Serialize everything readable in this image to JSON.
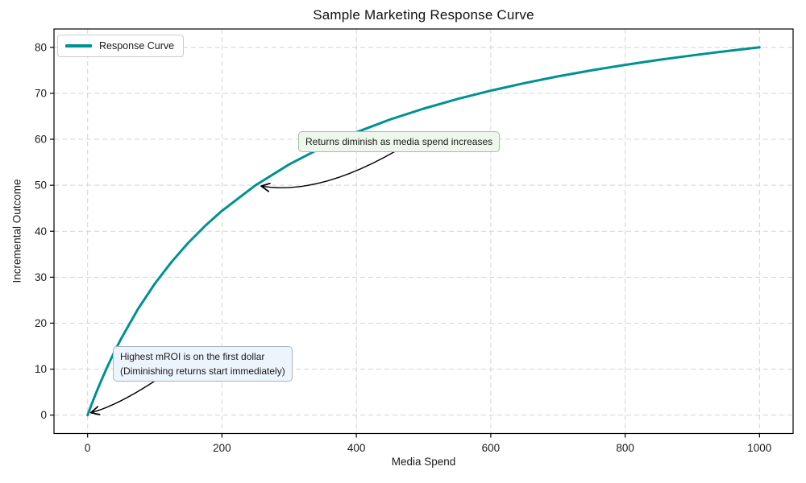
{
  "figure": {
    "title": "Sample Marketing Response Curve",
    "xlabel": "Media Spend",
    "ylabel": "Incremental Outcome"
  },
  "legend": {
    "label": "Response Curve"
  },
  "annotations": [
    {
      "text": "Returns diminish as media spend increases",
      "bg": "#eef7ec",
      "border": "#a3bfa3"
    },
    {
      "line1": "Highest mROI is on the first dollar",
      "line2": "(Diminishing returns start immediately)",
      "bg": "#ecf4fc",
      "border": "#a9b4bf"
    }
  ],
  "colors": {
    "curve": "#009191",
    "grid": "#d4d4d4",
    "spine": "#000000",
    "tick_text": "#1a1a1a",
    "arrow": "#000000"
  },
  "chart_data": {
    "type": "line",
    "title": "Sample Marketing Response Curve",
    "xlabel": "Media Spend",
    "ylabel": "Incremental Outcome",
    "xlim": [
      -50,
      1050
    ],
    "ylim": [
      -4,
      84
    ],
    "x_ticks": [
      0,
      200,
      400,
      600,
      800,
      1000
    ],
    "y_ticks": [
      0,
      10,
      20,
      30,
      40,
      50,
      60,
      70,
      80
    ],
    "grid": true,
    "grid_style": "dashed",
    "legend_position": "upper left",
    "series": [
      {
        "name": "Response Curve",
        "color": "#009191",
        "formula": "y = 100 * x / (x + 250)",
        "x": [
          0,
          5,
          10,
          15,
          20,
          30,
          40,
          50,
          75,
          100,
          125,
          150,
          175,
          200,
          250,
          300,
          350,
          400,
          450,
          500,
          550,
          600,
          650,
          700,
          750,
          800,
          850,
          900,
          950,
          1000
        ],
        "y": [
          0,
          1.96,
          3.85,
          5.66,
          7.41,
          10.71,
          13.79,
          16.67,
          23.08,
          28.57,
          33.33,
          37.5,
          41.18,
          44.44,
          50,
          54.55,
          58.33,
          61.54,
          64.29,
          66.67,
          68.75,
          70.59,
          72.22,
          73.68,
          75,
          76.19,
          77.27,
          78.26,
          79.17,
          80
        ]
      }
    ],
    "annotations": [
      {
        "text": "Returns diminish as media spend increases",
        "arrow_target_xy": [
          250,
          50
        ]
      },
      {
        "text": "Highest mROI is on the first dollar\n(Diminishing returns start immediately)",
        "arrow_target_xy": [
          0,
          0
        ]
      }
    ]
  }
}
